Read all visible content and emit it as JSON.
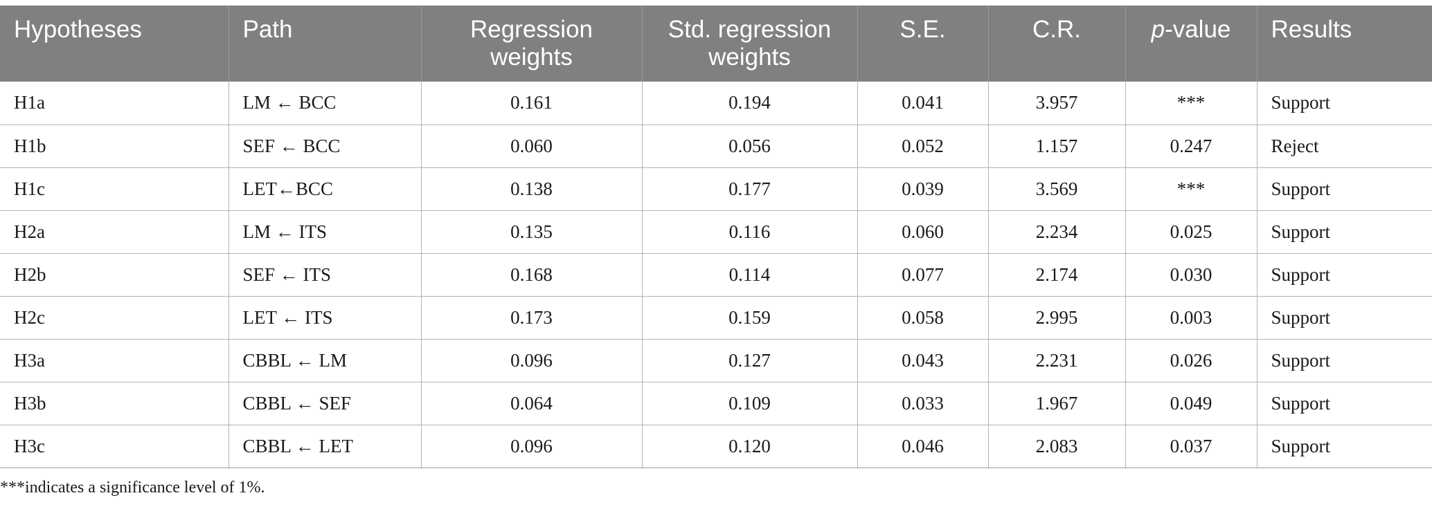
{
  "table": {
    "headers": [
      {
        "label": "Hypotheses",
        "italic_prefix": ""
      },
      {
        "label": "Path",
        "italic_prefix": ""
      },
      {
        "label": "Regression weights",
        "italic_prefix": ""
      },
      {
        "label": "Std. regression weights",
        "italic_prefix": ""
      },
      {
        "label": "S.E.",
        "italic_prefix": ""
      },
      {
        "label": "C.R.",
        "italic_prefix": ""
      },
      {
        "label": "-value",
        "italic_prefix": "p"
      },
      {
        "label": "Results",
        "italic_prefix": ""
      }
    ],
    "rows": [
      [
        "H1a",
        "LM ← BCC",
        "0.161",
        "0.194",
        "0.041",
        "3.957",
        "***",
        "Support"
      ],
      [
        "H1b",
        "SEF ← BCC",
        "0.060",
        "0.056",
        "0.052",
        "1.157",
        "0.247",
        "Reject"
      ],
      [
        "H1c",
        "LET←BCC",
        "0.138",
        "0.177",
        "0.039",
        "3.569",
        "***",
        "Support"
      ],
      [
        "H2a",
        "LM ← ITS",
        "0.135",
        "0.116",
        "0.060",
        "2.234",
        "0.025",
        "Support"
      ],
      [
        "H2b",
        "SEF ← ITS",
        "0.168",
        "0.114",
        "0.077",
        "2.174",
        "0.030",
        "Support"
      ],
      [
        "H2c",
        "LET ← ITS",
        "0.173",
        "0.159",
        "0.058",
        "2.995",
        "0.003",
        "Support"
      ],
      [
        "H3a",
        "CBBL ← LM",
        "0.096",
        "0.127",
        "0.043",
        "2.231",
        "0.026",
        "Support"
      ],
      [
        "H3b",
        "CBBL ← SEF",
        "0.064",
        "0.109",
        "0.033",
        "1.967",
        "0.049",
        "Support"
      ],
      [
        "H3c",
        "CBBL ← LET",
        "0.096",
        "0.120",
        "0.046",
        "2.083",
        "0.037",
        "Support"
      ]
    ]
  },
  "footnote": "***indicates a significance level of 1%."
}
